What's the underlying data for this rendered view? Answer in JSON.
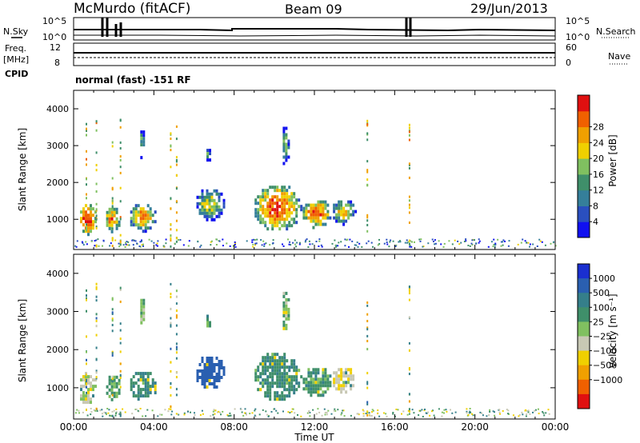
{
  "header": {
    "station": "McMurdo (fitACF)",
    "beam": "Beam 09",
    "date": "29/Jun/2013"
  },
  "noise_panel": {
    "left_label": "N.Sky",
    "left_ticks": [
      "10^5",
      "10^0"
    ],
    "right_ticks": [
      "10^5",
      "10^0"
    ],
    "right_label": "N.Search"
  },
  "freq_panel": {
    "left_label_line1": "Freq.",
    "left_label_line2": "[MHz]",
    "left_ticks": [
      "12",
      "8"
    ],
    "right_ticks": [
      "60",
      "0"
    ],
    "right_label": "Nave",
    "cpid_label": "CPID",
    "cpid_text": "normal (fast) -151 RF"
  },
  "x_axis": {
    "label": "Time UT",
    "ticks": [
      "00:00",
      "04:00",
      "08:00",
      "12:00",
      "16:00",
      "20:00",
      "00:00"
    ]
  },
  "y_axis": {
    "label": "Slant Range [km]",
    "ticks": [
      "1000",
      "2000",
      "3000",
      "4000"
    ]
  },
  "colorbars": {
    "power": {
      "label": "Power [dB]",
      "ticks": [
        "4",
        "8",
        "12",
        "16",
        "20",
        "24",
        "28"
      ],
      "colors": [
        "#1010f0",
        "#2a4fbf",
        "#357f9a",
        "#3f8f6a",
        "#80c060",
        "#f0d000",
        "#f0a000",
        "#f06000",
        "#e01010"
      ]
    },
    "velocity": {
      "label": "Velocity [m s⁻¹]",
      "ticks": [
        "1000",
        "500",
        "100",
        "25",
        "−25",
        "−100",
        "−500",
        "−1000"
      ],
      "colors": [
        "#1a2fd0",
        "#2a5fb0",
        "#357f8a",
        "#3f8f6a",
        "#80c060",
        "#c8c8b4",
        "#f0d000",
        "#f0a000",
        "#f06000",
        "#e01010"
      ]
    }
  },
  "chart_data": [
    {
      "type": "heatmap",
      "title": "",
      "xlabel": "Time UT",
      "ylabel": "Slant Range [km]",
      "xlim": [
        0,
        24
      ],
      "ylim": [
        180,
        4500
      ],
      "quantity": "Power [dB]",
      "clim": [
        0,
        30
      ],
      "patches": [
        {
          "t0": 0.2,
          "t1": 1.1,
          "r0": 600,
          "r1": 1500,
          "v": 20
        },
        {
          "t0": 1.5,
          "t1": 2.3,
          "r0": 700,
          "r1": 1400,
          "v": 16
        },
        {
          "t0": 2.7,
          "t1": 4.1,
          "r0": 700,
          "r1": 1500,
          "v": 14
        },
        {
          "t0": 6.0,
          "t1": 7.5,
          "r0": 1000,
          "r1": 1900,
          "v": 10
        },
        {
          "t0": 8.9,
          "t1": 11.3,
          "r0": 700,
          "r1": 2000,
          "v": 18
        },
        {
          "t0": 11.3,
          "t1": 12.8,
          "r0": 800,
          "r1": 1600,
          "v": 17
        },
        {
          "t0": 12.8,
          "t1": 14.0,
          "r0": 900,
          "r1": 1600,
          "v": 12
        },
        {
          "t0": 3.2,
          "t1": 3.5,
          "r0": 2700,
          "r1": 3500,
          "v": 6
        },
        {
          "t0": 6.5,
          "t1": 6.8,
          "r0": 2600,
          "r1": 3000,
          "v": 5
        },
        {
          "t0": 10.3,
          "t1": 10.7,
          "r0": 2500,
          "r1": 3600,
          "v": 7
        }
      ]
    },
    {
      "type": "heatmap",
      "title": "",
      "xlabel": "Time UT",
      "ylabel": "Slant Range [km]",
      "xlim": [
        0,
        24
      ],
      "ylim": [
        180,
        4500
      ],
      "quantity": "Velocity [m s-1]",
      "clim": [
        -1000,
        1000
      ],
      "patches": [
        {
          "t0": 0.2,
          "t1": 1.1,
          "r0": 600,
          "r1": 1500,
          "v": -60
        },
        {
          "t0": 1.5,
          "t1": 2.3,
          "r0": 700,
          "r1": 1400,
          "v": 40
        },
        {
          "t0": 2.7,
          "t1": 4.1,
          "r0": 700,
          "r1": 1500,
          "v": 80
        },
        {
          "t0": 6.0,
          "t1": 7.5,
          "r0": 1000,
          "r1": 1900,
          "v": 600
        },
        {
          "t0": 8.9,
          "t1": 11.3,
          "r0": 700,
          "r1": 2000,
          "v": 80
        },
        {
          "t0": 11.3,
          "t1": 12.8,
          "r0": 800,
          "r1": 1600,
          "v": 60
        },
        {
          "t0": 12.8,
          "t1": 14.0,
          "r0": 900,
          "r1": 1600,
          "v": -80
        },
        {
          "t0": 3.2,
          "t1": 3.5,
          "r0": 2700,
          "r1": 3500,
          "v": -10
        },
        {
          "t0": 6.5,
          "t1": 6.8,
          "r0": 2600,
          "r1": 3000,
          "v": 60
        },
        {
          "t0": 10.3,
          "t1": 10.7,
          "r0": 2500,
          "r1": 3600,
          "v": 20
        }
      ]
    }
  ]
}
